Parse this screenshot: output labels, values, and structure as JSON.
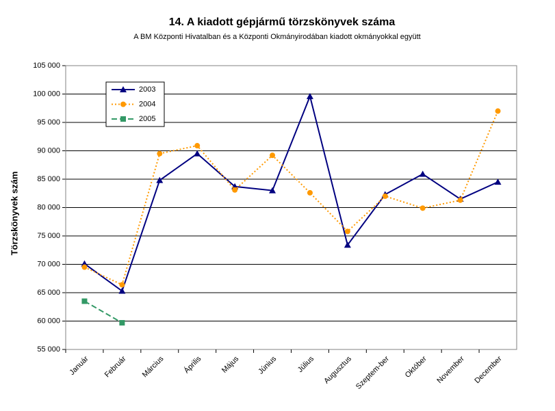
{
  "chart_data": {
    "type": "line",
    "title": "14. A kiadott gépjármű törzskönyvek száma",
    "subtitle": "A BM Központi Hivatalban és a Központi Okmányirodában kiadott okmányokkal együtt",
    "y_label": "Törzskönyvek szám",
    "categories": [
      "Január",
      "Február",
      "Március",
      "Április",
      "Május",
      "Június",
      "Július",
      "Augusztus",
      "Szeptem-ber",
      "Október",
      "November",
      "December"
    ],
    "series": [
      {
        "name": "2003",
        "color": "#000080",
        "marker": "triangle",
        "dash": "solid",
        "values": [
          70100,
          65300,
          84800,
          89500,
          83700,
          83000,
          99600,
          73400,
          82300,
          85900,
          81500,
          84500
        ]
      },
      {
        "name": "2004",
        "color": "#FF9900",
        "marker": "circle",
        "dash": "dotted",
        "values": [
          69500,
          66400,
          89500,
          90900,
          83100,
          89200,
          82600,
          75800,
          82000,
          79900,
          81300,
          97000
        ]
      },
      {
        "name": "2005",
        "color": "#339966",
        "marker": "square",
        "dash": "dashed",
        "values": [
          63500,
          59700,
          null,
          null,
          null,
          null,
          null,
          null,
          null,
          null,
          null,
          null
        ]
      }
    ],
    "ylim": [
      55000,
      105000
    ],
    "yticks": [
      {
        "value": 55000,
        "label": "55 000"
      },
      {
        "value": 60000,
        "label": "60 000"
      },
      {
        "value": 65000,
        "label": "65 000"
      },
      {
        "value": 70000,
        "label": "70 000"
      },
      {
        "value": 75000,
        "label": "75 000"
      },
      {
        "value": 80000,
        "label": "80 000"
      },
      {
        "value": 85000,
        "label": "85 000"
      },
      {
        "value": 90000,
        "label": "90 000"
      },
      {
        "value": 95000,
        "label": "95 000"
      },
      {
        "value": 100000,
        "label": "100 000"
      },
      {
        "value": 105000,
        "label": "105 000"
      }
    ],
    "grid": true,
    "legend": "upper-left"
  }
}
